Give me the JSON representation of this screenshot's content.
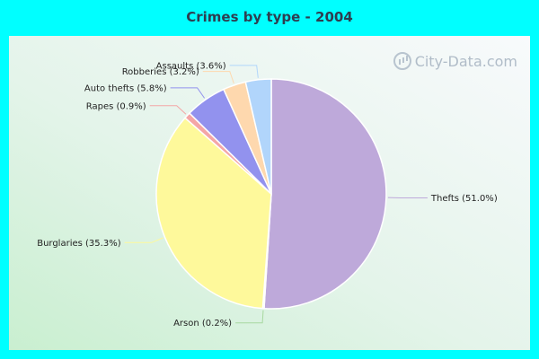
{
  "chart_data": {
    "type": "pie",
    "title": "Crimes by type - 2004",
    "legend": "none",
    "slices": [
      {
        "label": "Thefts",
        "value": 51.0,
        "display": "Thefts (51.0%)",
        "color": "#bea9da"
      },
      {
        "label": "Arson",
        "value": 0.2,
        "display": "Arson (0.2%)",
        "color": "#a8d8a0"
      },
      {
        "label": "Burglaries",
        "value": 35.3,
        "display": "Burglaries (35.3%)",
        "color": "#fef99b"
      },
      {
        "label": "Rapes",
        "value": 0.9,
        "display": "Rapes (0.9%)",
        "color": "#f4a6a6"
      },
      {
        "label": "Auto thefts",
        "value": 5.8,
        "display": "Auto thefts (5.8%)",
        "color": "#9292ee"
      },
      {
        "label": "Robberies",
        "value": 3.2,
        "display": "Robberies (3.2%)",
        "color": "#fed8ae"
      },
      {
        "label": "Assaults",
        "value": 3.6,
        "display": "Assaults (3.6%)",
        "color": "#b1d5fb"
      }
    ]
  },
  "watermark": {
    "text": "City-Data.com",
    "icon": "city-data-logo-icon"
  }
}
